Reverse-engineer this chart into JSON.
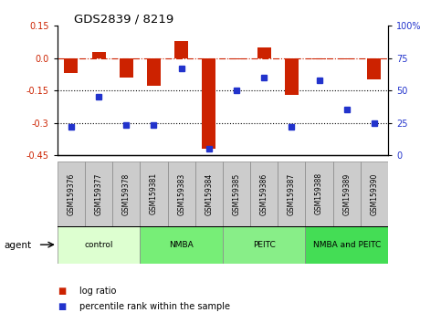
{
  "title": "GDS2839 / 8219",
  "samples": [
    "GSM159376",
    "GSM159377",
    "GSM159378",
    "GSM159381",
    "GSM159383",
    "GSM159384",
    "GSM159385",
    "GSM159386",
    "GSM159387",
    "GSM159388",
    "GSM159389",
    "GSM159390"
  ],
  "log_ratio": [
    -0.07,
    0.03,
    -0.09,
    -0.13,
    0.08,
    -0.42,
    -0.005,
    0.05,
    -0.17,
    -0.005,
    -0.005,
    -0.1
  ],
  "percentile_rank": [
    22,
    45,
    23,
    23,
    67,
    5,
    50,
    60,
    22,
    58,
    35,
    25
  ],
  "ylim_left": [
    -0.45,
    0.15
  ],
  "ylim_right": [
    0,
    100
  ],
  "yticks_left": [
    -0.45,
    -0.3,
    -0.15,
    0.0,
    0.15
  ],
  "yticks_right": [
    0,
    25,
    50,
    75,
    100
  ],
  "hlines": [
    -0.15,
    -0.3
  ],
  "dashed_hline": 0.0,
  "bar_color": "#cc2200",
  "dot_color": "#2233cc",
  "bar_width": 0.5,
  "groups": [
    {
      "label": "control",
      "start": 0,
      "end": 3,
      "color": "#ddffd0"
    },
    {
      "label": "NMBA",
      "start": 3,
      "end": 6,
      "color": "#77ee77"
    },
    {
      "label": "PEITC",
      "start": 6,
      "end": 9,
      "color": "#88ee88"
    },
    {
      "label": "NMBA and PEITC",
      "start": 9,
      "end": 12,
      "color": "#44dd55"
    }
  ],
  "sample_cell_color": "#cccccc",
  "agent_label": "agent",
  "legend_log_ratio": "log ratio",
  "legend_percentile": "percentile rank within the sample"
}
